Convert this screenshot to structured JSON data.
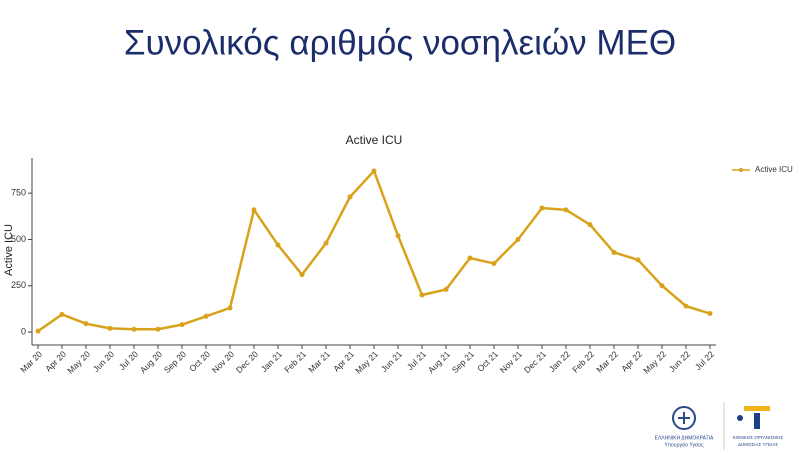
{
  "heading": "Συνολικός αριθμός νοσηλειών ΜΕΘ",
  "chart_data": {
    "type": "line",
    "title": "Active ICU",
    "y_label": "Active ICU",
    "categories": [
      "Mar 20",
      "Apr 20",
      "May 20",
      "Jun 20",
      "Jul 20",
      "Aug 20",
      "Sep 20",
      "Oct 20",
      "Nov 20",
      "Dec 20",
      "Jan 21",
      "Feb 21",
      "Mar 21",
      "Apr 21",
      "May 21",
      "Jun 21",
      "Jul 21",
      "Aug 21",
      "Sep 21",
      "Oct 21",
      "Nov 21",
      "Dec 21",
      "Jan 22",
      "Feb 22",
      "Mar 22",
      "Apr 22",
      "May 22",
      "Jun 22",
      "Jul 22"
    ],
    "series": [
      {
        "name": "Active ICU",
        "color": "#d9a21b",
        "values": [
          5,
          95,
          45,
          20,
          15,
          15,
          40,
          85,
          130,
          660,
          470,
          310,
          480,
          730,
          870,
          520,
          200,
          230,
          400,
          370,
          500,
          670,
          660,
          580,
          430,
          390,
          250,
          140,
          100
        ]
      }
    ],
    "ylim": [
      -70,
      940
    ],
    "yticks": [
      0,
      250,
      500,
      750
    ],
    "legend": "top-right"
  },
  "logos": {
    "left_line1": "ΕΛΛΗΝΙΚΗ ΔΗΜΟΚΡΑΤΙΑ",
    "left_line2": "Υπουργείο Υγείας",
    "right_line1": "ΕΘΝΙΚΟΣ ΟΡΓΑΝΙΣΜΟΣ",
    "right_line2": "ΔΗΜΟΣΙΑΣ ΥΓΕΙΑΣ"
  }
}
